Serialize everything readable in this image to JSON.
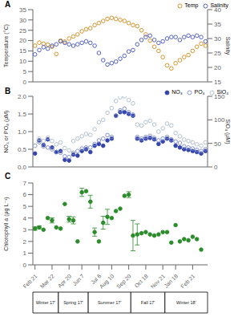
{
  "chart_data": [
    {
      "type": "scatter",
      "title": "A",
      "ylabel": "Temperature (°C)",
      "y2label": "Salinity",
      "x": [
        0,
        1,
        2,
        3,
        4,
        5,
        6,
        7,
        8,
        9,
        10,
        11,
        12,
        13,
        14,
        15,
        16,
        17,
        18,
        19,
        20,
        21,
        22,
        23,
        24,
        25,
        26,
        27,
        28,
        29,
        30,
        31,
        32,
        33,
        34,
        35,
        36,
        37,
        38,
        39,
        40
      ],
      "xlim": [
        -0.5,
        40.5
      ],
      "ylim": [
        0,
        35
      ],
      "yticks": [
        0,
        5,
        10,
        15,
        20,
        25,
        30,
        35
      ],
      "y2lim": [
        15,
        40
      ],
      "y2ticks": [
        15,
        20,
        25,
        30,
        35,
        40
      ],
      "tick_labels": "y",
      "legend": "upper right",
      "grid": false,
      "series": [
        {
          "name": "Temp",
          "color": "#D4891A",
          "marker": "open_circle",
          "values": [
            17.5,
            19.0,
            18.5,
            18.0,
            17.0,
            13.5,
            20.0,
            19.5,
            21.0,
            22.0,
            23.0,
            24.5,
            25.5,
            26.0,
            27.5,
            28.5,
            29.5,
            30.5,
            31.0,
            30.5,
            30.0,
            29.5,
            28.5,
            27.5,
            27.0,
            25.0,
            23.0,
            20.0,
            17.0,
            15.0,
            12.0,
            8.0,
            6.5,
            9.0,
            10.5,
            12.0,
            13.0,
            15.0,
            17.0,
            18.5,
            17.5
          ]
        },
        {
          "name": "Salinity",
          "color": "#4455BB",
          "marker": "open_circle",
          "axis": "y2",
          "values": [
            24.5,
            26.0,
            27.0,
            26.5,
            27.5,
            28.0,
            29.0,
            28.5,
            28.0,
            27.5,
            28.0,
            28.5,
            29.0,
            28.5,
            27.5,
            25.0,
            22.5,
            21.0,
            21.5,
            22.0,
            23.0,
            24.0,
            25.5,
            26.0,
            28.0,
            29.5,
            30.5,
            31.0,
            29.5,
            28.5,
            29.0,
            30.0,
            30.5,
            30.5,
            29.5,
            30.5,
            31.0,
            30.5,
            31.0,
            30.5,
            29.0
          ]
        }
      ]
    },
    {
      "type": "scatter",
      "title": "B",
      "ylabel": "NO₃ or PO₄ (μM)",
      "y2label": "SiO₄ (μM)",
      "x": [
        0,
        1,
        2,
        3,
        4,
        5,
        6,
        7,
        8,
        9,
        10,
        11,
        12,
        13,
        14,
        15,
        16,
        17,
        18,
        19,
        20,
        21,
        22,
        23,
        24,
        25,
        26,
        27,
        28,
        29,
        30,
        31,
        32,
        33,
        34,
        35,
        36,
        37,
        38,
        39,
        40
      ],
      "xlim": [
        -0.5,
        40.5
      ],
      "ylim": [
        0,
        2
      ],
      "yticks": [
        {
          "value": 0,
          "label": "0.0"
        },
        0.5,
        {
          "value": 1,
          "label": "1.0"
        },
        1.5,
        {
          "value": 2,
          "label": "2.0"
        }
      ],
      "y2lim": [
        0,
        150
      ],
      "y2ticks": [
        0,
        50,
        100,
        150
      ],
      "tick_labels": "y",
      "legend": "upper right",
      "grid": false,
      "series": [
        {
          "name": "NO₃",
          "color": "#3344AA",
          "marker": "circle",
          "values": [
            0.38,
            0.75,
            0.62,
            0.78,
            0.55,
            0.42,
            0.45,
            0.2,
            0.18,
            0.35,
            0.32,
            0.45,
            0.5,
            0.42,
            0.6,
            0.65,
            0.6,
            0.75,
            0.8,
            1.45,
            1.55,
            1.55,
            1.5,
            1.45,
            0.8,
            0.75,
            0.8,
            0.82,
            0.78,
            0.65,
            0.72,
            0.8,
            0.75,
            0.6,
            0.55,
            0.5,
            0.48,
            0.45,
            0.42,
            0.38,
            0.45
          ]
        },
        {
          "name": "PO₄",
          "color": "#7788CC",
          "marker": "open_circle",
          "values": [
            0.6,
            0.7,
            0.58,
            0.55,
            0.5,
            0.42,
            0.4,
            0.3,
            0.28,
            0.4,
            0.45,
            0.52,
            0.55,
            0.55,
            0.65,
            0.75,
            0.8,
            0.9,
            0.85,
            1.45,
            1.6,
            1.65,
            1.55,
            1.48,
            0.85,
            0.8,
            0.85,
            0.88,
            0.82,
            0.75,
            0.8,
            0.85,
            0.78,
            0.72,
            0.68,
            0.58,
            0.55,
            0.52,
            0.48,
            0.45,
            0.5
          ]
        },
        {
          "name": "SiO₄",
          "color": "#AABBCC",
          "marker": "open_circle",
          "axis": "y2",
          "values": [
            45,
            60,
            55,
            62,
            55,
            48,
            52,
            40,
            35,
            55,
            60,
            65,
            70,
            68,
            80,
            95,
            100,
            115,
            125,
            140,
            148,
            150,
            142,
            135,
            90,
            88,
            95,
            98,
            90,
            75,
            82,
            92,
            88,
            72,
            65,
            58,
            55,
            52,
            48,
            45,
            52
          ]
        }
      ]
    },
    {
      "type": "scatter",
      "title": "C",
      "ylabel": "Chlorophyll a (μg L⁻¹)",
      "x": [
        0,
        1,
        2,
        3,
        4,
        5,
        6,
        7,
        8,
        9,
        10,
        11,
        12,
        13,
        14,
        15,
        16,
        17,
        18,
        19,
        20,
        21,
        22,
        23,
        24,
        25,
        26,
        27,
        28,
        29,
        30,
        31,
        32,
        33,
        34,
        35,
        36,
        37,
        38,
        39
      ],
      "xlim": [
        -0.5,
        40.5
      ],
      "xticks": [
        {
          "value": 0,
          "label": "Feb 21"
        },
        {
          "value": 4,
          "label": "Mar 22"
        },
        {
          "value": 8,
          "label": "Apr 20"
        },
        {
          "value": 11,
          "label": "Jun 7"
        },
        {
          "value": 15,
          "label": "Jul 6"
        },
        {
          "value": 18,
          "label": "Aug 10"
        },
        {
          "value": 22,
          "label": "Sep 20"
        },
        {
          "value": 26,
          "label": "Oct 18"
        },
        {
          "value": 30,
          "label": "Nov 21"
        },
        {
          "value": 33,
          "label": "Jan 18"
        },
        {
          "value": 37,
          "label": "Feb 21"
        }
      ],
      "ylim": [
        0,
        7
      ],
      "yticks": [
        0,
        1,
        2,
        3,
        4,
        5,
        6,
        7
      ],
      "grid": false,
      "series": [
        {
          "color": "#2A8C2A",
          "marker": "circle",
          "values": [
            3.1,
            3.2,
            3.0,
            4.0,
            3.8,
            3.2,
            3.1,
            5.2,
            3.9,
            3.8,
            2.0,
            6.2,
            6.3,
            5.4,
            2.8,
            2.0,
            3.6,
            4.1,
            4.0,
            4.6,
            4.8,
            5.9,
            6.0,
            2.5,
            2.6,
            2.7,
            2.8,
            2.6,
            2.5,
            2.6,
            2.8,
            2.8,
            1.9,
            3.4,
            2.0,
            2.2,
            2.1,
            2.4,
            2.2,
            1.3
          ],
          "errors": [
            0.15,
            0.12,
            null,
            null,
            0.22,
            null,
            null,
            null,
            0.25,
            0.3,
            null,
            0.35,
            null,
            0.55,
            0.35,
            null,
            0.55,
            0.65,
            null,
            null,
            null,
            null,
            0.25,
            1.3,
            0.9,
            null,
            null,
            null,
            null,
            null,
            null,
            null,
            null,
            null,
            null,
            null,
            null,
            null,
            null,
            null
          ]
        }
      ],
      "spans": [
        {
          "x0": -0.5,
          "x1": 5.5,
          "label": "Winter 17'"
        },
        {
          "x0": 5.5,
          "x1": 12.5,
          "label": "Spring 17'"
        },
        {
          "x0": 12.5,
          "x1": 22.5,
          "label": "Summer 17'"
        },
        {
          "x0": 22.5,
          "x1": 30.5,
          "label": "Fall 17'"
        },
        {
          "x0": 30.5,
          "x1": 40.5,
          "label": "Winter 18'"
        }
      ]
    }
  ]
}
